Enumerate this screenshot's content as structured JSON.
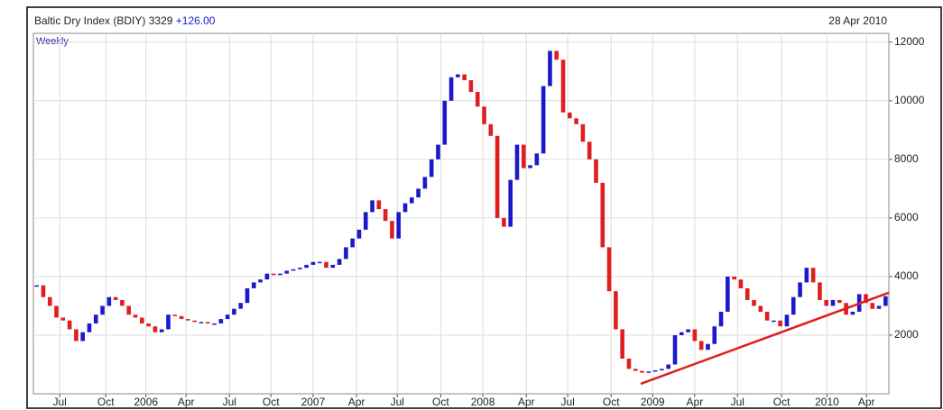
{
  "chart_data": {
    "type": "price_bars",
    "title": "Baltic Dry Index (BDIY)",
    "last": 3329,
    "change": "+126.00",
    "date": "28 Apr 2010",
    "period": "Weekly",
    "up_color": "#1a1acc",
    "down_color": "#e01e1e",
    "values": [
      3700,
      3300,
      3000,
      2600,
      2500,
      2200,
      1800,
      2100,
      2400,
      2700,
      3000,
      3300,
      3200,
      3000,
      2700,
      2600,
      2400,
      2300,
      2100,
      2200,
      2700,
      2650,
      2550,
      2500,
      2450,
      2450,
      2400,
      2400,
      2550,
      2700,
      2900,
      3100,
      3600,
      3800,
      3900,
      4100,
      4050,
      4100,
      4200,
      4250,
      4300,
      4400,
      4500,
      4500,
      4300,
      4400,
      4600,
      5000,
      5300,
      5600,
      6200,
      6600,
      6300,
      5900,
      5300,
      6200,
      6500,
      6700,
      7000,
      7400,
      8000,
      8500,
      10000,
      10800,
      10900,
      10700,
      10300,
      9800,
      9200,
      8800,
      6000,
      5700,
      7300,
      8500,
      7700,
      7800,
      8200,
      10500,
      11700,
      11400,
      9600,
      9400,
      9200,
      8600,
      8000,
      7200,
      5000,
      3500,
      2200,
      1200,
      850,
      780,
      720,
      760,
      800,
      850,
      1000,
      2000,
      2100,
      2200,
      1800,
      1500,
      1700,
      2300,
      2800,
      4000,
      3900,
      3600,
      3200,
      3000,
      2800,
      2500,
      2500,
      2300,
      2700,
      3300,
      3800,
      4300,
      3800,
      3200,
      3000,
      3200,
      3100,
      2700,
      2800,
      3400,
      3100,
      2900,
      3000,
      3329
    ],
    "trendline": {
      "color": "#e01e1e",
      "x": [
        91.8,
        129.5
      ],
      "values": [
        340,
        3450
      ]
    },
    "xlim": [
      -0.5,
      129.5
    ],
    "xticks": [
      {
        "value": 3.5,
        "label": "Jul"
      },
      {
        "value": 10.5,
        "label": "Oct"
      },
      {
        "value": 16.6,
        "label": "2006"
      },
      {
        "value": 22.7,
        "label": "Apr"
      },
      {
        "value": 29.3,
        "label": "Jul"
      },
      {
        "value": 35.6,
        "label": "Oct"
      },
      {
        "value": 42.0,
        "label": "2007"
      },
      {
        "value": 48.6,
        "label": "Apr"
      },
      {
        "value": 54.8,
        "label": "Jul"
      },
      {
        "value": 61.4,
        "label": "Oct"
      },
      {
        "value": 67.8,
        "label": "2008"
      },
      {
        "value": 74.4,
        "label": "Apr"
      },
      {
        "value": 80.7,
        "label": "Jul"
      },
      {
        "value": 87.3,
        "label": "Oct"
      },
      {
        "value": 93.6,
        "label": "2009"
      },
      {
        "value": 100.0,
        "label": "Apr"
      },
      {
        "value": 106.5,
        "label": "Jul"
      },
      {
        "value": 113.2,
        "label": "Oct"
      },
      {
        "value": 120.1,
        "label": "2010"
      },
      {
        "value": 126.1,
        "label": "Apr"
      }
    ],
    "ylim": [
      0,
      12300
    ],
    "yticks": [
      2000,
      4000,
      6000,
      8000,
      10000,
      12000
    ],
    "grid": true
  }
}
